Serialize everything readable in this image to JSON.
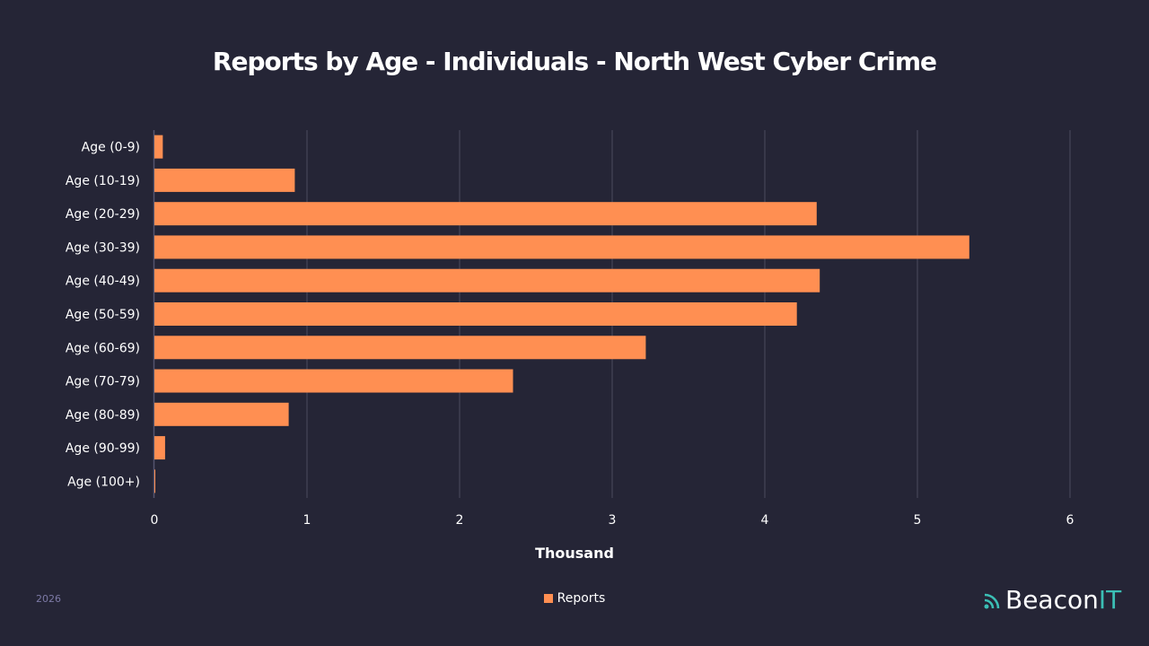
{
  "chart_data": {
    "type": "bar",
    "orientation": "horizontal",
    "title": "Reports by Age - Individuals - North West Cyber Crime",
    "xlabel": "Thousand",
    "ylabel": "",
    "categories": [
      "Age (0-9)",
      "Age (10-19)",
      "Age (20-29)",
      "Age (30-39)",
      "Age (40-49)",
      "Age (50-59)",
      "Age (60-69)",
      "Age (70-79)",
      "Age (80-89)",
      "Age (90-99)",
      "Age (100+)"
    ],
    "series": [
      {
        "name": "Reports",
        "values": [
          0.055,
          0.92,
          4.34,
          5.34,
          4.36,
          4.21,
          3.22,
          2.35,
          0.88,
          0.07,
          0.006
        ],
        "color": "#ff8f52"
      }
    ],
    "xlim": [
      0,
      6
    ],
    "xticks": [
      "0",
      "1",
      "2",
      "3",
      "4",
      "5",
      "6"
    ],
    "grid": true,
    "legend": "bottom-center"
  },
  "footer": {
    "year": "2026",
    "logo_main": "Beacon",
    "logo_accent": "IT"
  },
  "colors": {
    "background": "#252536",
    "bar": "#ff8f52",
    "grid": "#4a4a5e",
    "accent": "#3bbfb5"
  }
}
